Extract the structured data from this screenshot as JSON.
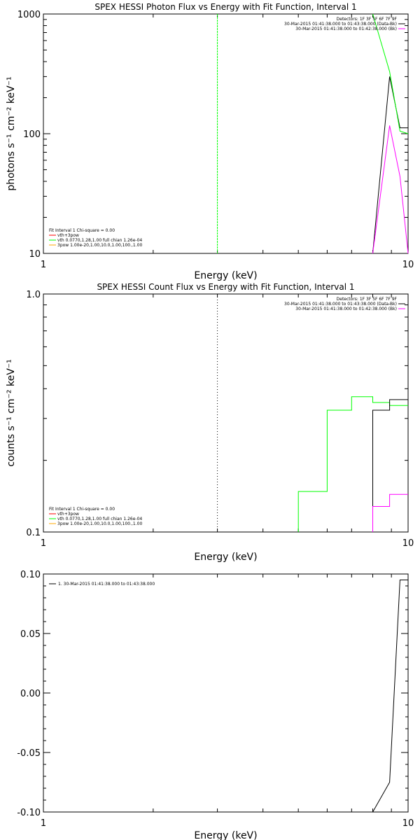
{
  "colors": {
    "black": "#000000",
    "green": "#00ff00",
    "magenta": "#ff00ff",
    "red": "#ff0000",
    "orange": "#ffaa00"
  },
  "chart_data": [
    {
      "type": "line",
      "title": "SPEX HESSI Photon Flux vs Energy with Fit Function, Interval 1",
      "xlabel": "Energy (keV)",
      "ylabel": "photons s⁻¹ cm⁻² keV⁻¹",
      "xscale": "log",
      "yscale": "log",
      "xlim": [
        1,
        10
      ],
      "ylim": [
        10,
        1000
      ],
      "xticks": [
        {
          "v": 1,
          "label": "1"
        },
        {
          "v": 10,
          "label": "10"
        }
      ],
      "yticks": [
        {
          "v": 10,
          "label": "10"
        },
        {
          "v": 100,
          "label": "100"
        },
        {
          "v": 1000,
          "label": "1000"
        }
      ],
      "vline": {
        "x": 3,
        "color": "green",
        "style": "dashed"
      },
      "legend_top_right": [
        {
          "text": "Detectors: 1F 3F 5F 6F 7F 9F",
          "color": "black"
        },
        {
          "text": "30-Mar-2015 01:41:38.000 to 01:43:38.000 (Data-Bk)",
          "color": "black"
        },
        {
          "text": "30-Mar-2015 01:41:38.000 to 01:42:38.000 (Bk)",
          "color": "magenta"
        }
      ],
      "legend_bottom_left": [
        {
          "text": "Fit Interval 1   Chi-square = 0.00",
          "color": "black"
        },
        {
          "text": "vth+3pow",
          "color": "red"
        },
        {
          "text": "vth 0.0770,1.28,1.00  full chian 1.26e-04",
          "color": "green"
        },
        {
          "text": "3pow 1.00e-20,1.00,10.0,1.00,100.,1.00",
          "color": "orange"
        }
      ],
      "series": [
        {
          "color": "black",
          "x": [
            8,
            8.9,
            8.9,
            9.5,
            9.5,
            10
          ],
          "y": [
            10,
            300,
            300,
            112,
            112,
            112
          ]
        },
        {
          "color": "green",
          "x": [
            8,
            8.9,
            8.9,
            9.5,
            9.5,
            10
          ],
          "y": [
            1000,
            330,
            330,
            105,
            105,
            100
          ]
        },
        {
          "color": "magenta",
          "x": [
            8,
            8.9,
            8.9,
            9.5,
            9.5,
            10
          ],
          "y": [
            10,
            117,
            117,
            44,
            44,
            10
          ]
        }
      ]
    },
    {
      "type": "line",
      "title": "SPEX HESSI Count Flux vs Energy with Fit Function, Interval 1",
      "xlabel": "Energy (keV)",
      "ylabel": "counts s⁻¹ cm⁻² keV⁻¹",
      "xscale": "log",
      "yscale": "log",
      "xlim": [
        1,
        10
      ],
      "ylim": [
        0.1,
        1.0
      ],
      "xticks": [
        {
          "v": 1,
          "label": "1"
        },
        {
          "v": 10,
          "label": "10"
        }
      ],
      "yticks": [
        {
          "v": 0.1,
          "label": "0.1"
        },
        {
          "v": 1.0,
          "label": "1.0"
        }
      ],
      "vline": {
        "x": 3,
        "color": "black",
        "style": "dotted"
      },
      "legend_top_right": [
        {
          "text": "Detectors: 1F 3F 5F 6F 7F 9F",
          "color": "black"
        },
        {
          "text": "30-Mar-2015 01:41:38.000 to 01:43:38.000 (Data-Bk)",
          "color": "black"
        },
        {
          "text": "30-Mar-2015 01:41:38.000 to 01:42:38.000 (Bk)",
          "color": "magenta"
        }
      ],
      "legend_bottom_left": [
        {
          "text": "Fit Interval 1   Chi-square = 0.00",
          "color": "black"
        },
        {
          "text": "vth+3pow",
          "color": "red"
        },
        {
          "text": "vth 0.0770,1.28,1.00  full chian 1.26e-04",
          "color": "green"
        },
        {
          "text": "3pow 1.00e-20,1.00,10.0,1.00,100.,1.00",
          "color": "orange"
        }
      ],
      "series": [
        {
          "color": "green",
          "x": [
            5,
            5,
            6,
            6,
            7,
            7,
            8,
            8,
            8.9,
            8.9,
            10
          ],
          "y": [
            0.1,
            0.148,
            0.148,
            0.325,
            0.325,
            0.37,
            0.37,
            0.35,
            0.35,
            0.34,
            0.34
          ]
        },
        {
          "color": "black",
          "x": [
            8,
            8,
            8.9,
            8.9,
            10
          ],
          "y": [
            0.1,
            0.325,
            0.325,
            0.36,
            0.36
          ]
        },
        {
          "color": "magenta",
          "x": [
            8,
            8,
            8.9,
            8.9,
            10
          ],
          "y": [
            0.1,
            0.128,
            0.128,
            0.144,
            0.144
          ]
        }
      ]
    },
    {
      "type": "line",
      "title": "",
      "xlabel": "Energy (keV)",
      "ylabel": "",
      "xscale": "log",
      "yscale": "linear",
      "xlim": [
        1,
        10
      ],
      "ylim": [
        -0.1,
        0.1
      ],
      "xticks": [
        {
          "v": 1,
          "label": "1"
        },
        {
          "v": 10,
          "label": "10"
        }
      ],
      "yticks": [
        {
          "v": -0.1,
          "label": "-0.10"
        },
        {
          "v": -0.05,
          "label": "-0.05"
        },
        {
          "v": 0.0,
          "label": "0.00"
        },
        {
          "v": 0.05,
          "label": "0.05"
        },
        {
          "v": 0.1,
          "label": "0.10"
        }
      ],
      "legend_top_left": [
        {
          "text": "1. 30-Mar-2015 01:41:38.000 to 01:43:38.000",
          "color": "black"
        }
      ],
      "series": [
        {
          "color": "black",
          "x": [
            8,
            8.9,
            8.9,
            9.5,
            9.5,
            10
          ],
          "y": [
            -0.1,
            -0.075,
            -0.075,
            0.095,
            0.095,
            0.095
          ]
        }
      ]
    }
  ]
}
